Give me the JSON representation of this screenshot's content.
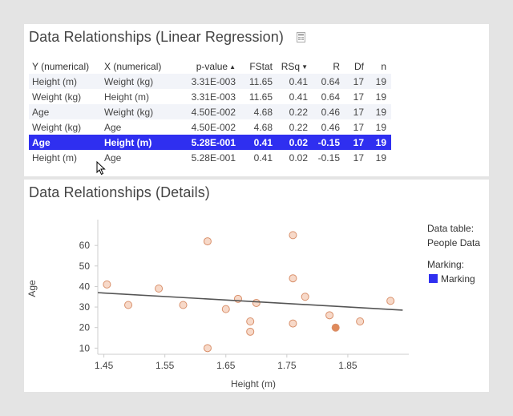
{
  "regression_panel": {
    "title": "Data Relationships (Linear Regression)",
    "icon": "calculator-icon",
    "columns": [
      "Y (numerical)",
      "X (numerical)",
      "p-value",
      "FStat",
      "RSq",
      "R",
      "Df",
      "n"
    ],
    "sort_indicators": {
      "p-value": "▲",
      "RSq": "▼"
    },
    "rows": [
      [
        "Height (m)",
        "Weight (kg)",
        "3.31E-003",
        "11.65",
        "0.41",
        "0.64",
        "17",
        "19"
      ],
      [
        "Weight (kg)",
        "Height (m)",
        "3.31E-003",
        "11.65",
        "0.41",
        "0.64",
        "17",
        "19"
      ],
      [
        "Age",
        "Weight (kg)",
        "4.50E-002",
        "4.68",
        "0.22",
        "0.46",
        "17",
        "19"
      ],
      [
        "Weight (kg)",
        "Age",
        "4.50E-002",
        "4.68",
        "0.22",
        "0.46",
        "17",
        "19"
      ],
      [
        "Age",
        "Height (m)",
        "5.28E-001",
        "0.41",
        "0.02",
        "-0.15",
        "17",
        "19"
      ],
      [
        "Height (m)",
        "Age",
        "5.28E-001",
        "0.41",
        "0.02",
        "-0.15",
        "17",
        "19"
      ]
    ],
    "selected_row": 4
  },
  "details_panel": {
    "title": "Data Relationships (Details)",
    "legend": {
      "data_table_label": "Data table:",
      "data_table_value": "People Data",
      "marking_label": "Marking:",
      "marking_value": "Marking"
    }
  },
  "colors": {
    "selection": "#2f2ff0",
    "point_fill": "#f7d9c9",
    "point_stroke": "#d9906b",
    "point_marked": "#e08a5b",
    "trend_line": "#555555"
  },
  "chart_data": {
    "type": "scatter",
    "xlabel": "Height (m)",
    "ylabel": "Age",
    "x_ticks": [
      "1.45",
      "1.55",
      "1.65",
      "1.75",
      "1.85"
    ],
    "y_ticks": [
      "10",
      "20",
      "30",
      "40",
      "50",
      "60"
    ],
    "xlim": [
      1.44,
      1.95
    ],
    "ylim": [
      7,
      71
    ],
    "grid": false,
    "legend_position": "right",
    "points": [
      {
        "x": 1.455,
        "y": 41
      },
      {
        "x": 1.49,
        "y": 31
      },
      {
        "x": 1.54,
        "y": 39
      },
      {
        "x": 1.58,
        "y": 31
      },
      {
        "x": 1.62,
        "y": 62
      },
      {
        "x": 1.62,
        "y": 10
      },
      {
        "x": 1.65,
        "y": 29
      },
      {
        "x": 1.67,
        "y": 34
      },
      {
        "x": 1.69,
        "y": 23
      },
      {
        "x": 1.69,
        "y": 18
      },
      {
        "x": 1.7,
        "y": 32
      },
      {
        "x": 1.76,
        "y": 65
      },
      {
        "x": 1.76,
        "y": 44
      },
      {
        "x": 1.76,
        "y": 22
      },
      {
        "x": 1.78,
        "y": 35
      },
      {
        "x": 1.82,
        "y": 26
      },
      {
        "x": 1.83,
        "y": 20,
        "marked": true
      },
      {
        "x": 1.87,
        "y": 23
      },
      {
        "x": 1.92,
        "y": 33
      }
    ],
    "trend_line": {
      "x": [
        1.44,
        1.94
      ],
      "y": [
        37,
        28.5
      ]
    }
  }
}
